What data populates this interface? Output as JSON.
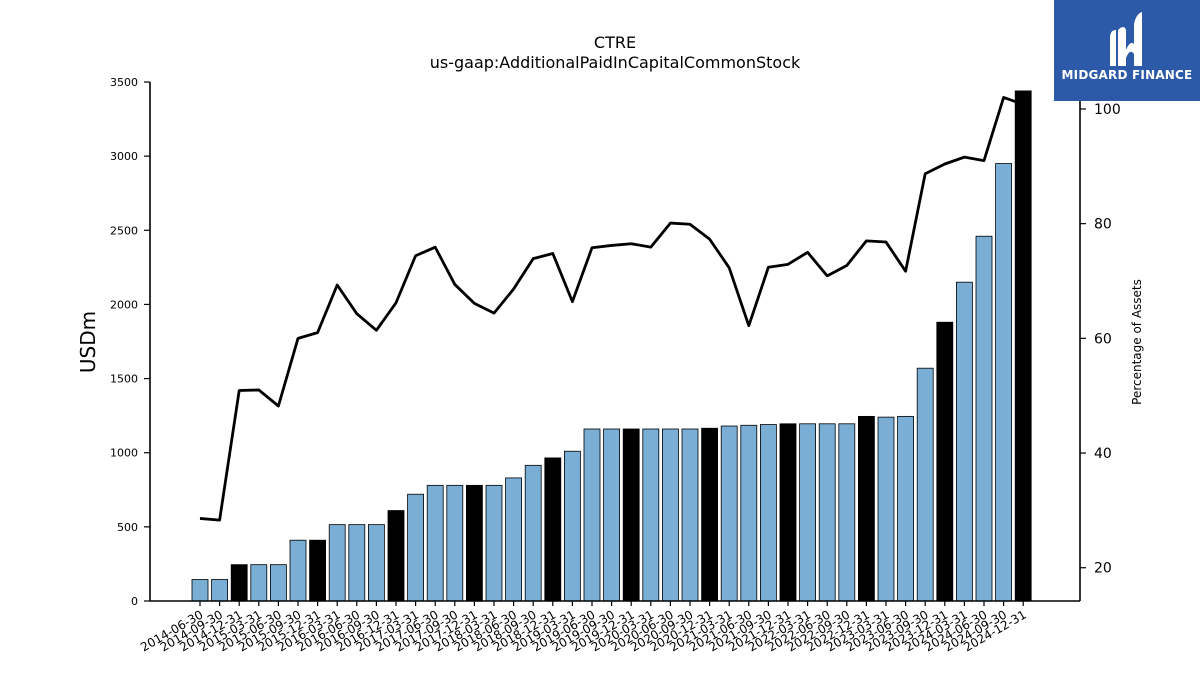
{
  "logo": {
    "name": "MIDGARD FINANCE"
  },
  "chart_data": {
    "type": "bar",
    "title": "CTRE",
    "subtitle": "us-gaap:AdditionalPaidInCapitalCommonStock",
    "ylabel": "USDm",
    "y2label": "Percentage of Assets",
    "ylim": [
      0,
      3500
    ],
    "y2lim": [
      14.2,
      104.7
    ],
    "yticks": [
      0,
      500,
      1000,
      1500,
      2000,
      2500,
      3000,
      3500
    ],
    "y2ticks": [
      20,
      40,
      60,
      80,
      100
    ],
    "categories": [
      "2014-06-30",
      "2014-09-30",
      "2014-12-31",
      "2015-03-31",
      "2015-06-30",
      "2015-09-30",
      "2015-12-31",
      "2016-03-31",
      "2016-06-30",
      "2016-09-30",
      "2016-12-31",
      "2017-03-31",
      "2017-06-30",
      "2017-09-30",
      "2017-12-31",
      "2018-03-31",
      "2018-06-30",
      "2018-09-30",
      "2018-12-31",
      "2019-03-31",
      "2019-06-30",
      "2019-09-30",
      "2019-12-31",
      "2020-03-31",
      "2020-06-30",
      "2020-09-30",
      "2020-12-31",
      "2021-03-31",
      "2021-06-30",
      "2021-09-30",
      "2021-12-31",
      "2022-03-31",
      "2022-06-30",
      "2022-09-30",
      "2022-12-31",
      "2023-03-31",
      "2023-06-30",
      "2023-09-30",
      "2023-12-31",
      "2024-03-31",
      "2024-06-30",
      "2024-09-30",
      "2024-12-31"
    ],
    "bar_colors": {
      "quarter": "#7aaed5",
      "year_end": "#000000",
      "edge": "#000000"
    },
    "series": [
      {
        "name": "USDm",
        "type": "bar",
        "values": [
          145,
          145,
          245,
          245,
          245,
          410,
          410,
          515,
          515,
          515,
          610,
          720,
          780,
          780,
          780,
          780,
          830,
          915,
          965,
          1010,
          1160,
          1160,
          1160,
          1160,
          1160,
          1160,
          1165,
          1180,
          1185,
          1190,
          1195,
          1195,
          1195,
          1195,
          1245,
          1240,
          1245,
          1570,
          1880,
          2150,
          2460,
          2950,
          3440
        ]
      },
      {
        "name": "Percentage of Assets",
        "type": "line",
        "color": "#000000",
        "values": [
          28.6,
          28.3,
          50.9,
          51.0,
          48.2,
          60.0,
          61.0,
          69.3,
          64.3,
          61.4,
          66.2,
          74.4,
          75.9,
          69.4,
          66.1,
          64.4,
          68.6,
          73.9,
          74.8,
          66.4,
          75.8,
          76.2,
          76.5,
          75.9,
          80.1,
          79.9,
          77.3,
          72.3,
          62.2,
          72.4,
          72.9,
          75.0,
          70.9,
          72.7,
          77.0,
          76.8,
          71.7,
          88.7,
          90.4,
          91.6,
          91.0,
          102.0,
          100.8
        ]
      }
    ]
  }
}
